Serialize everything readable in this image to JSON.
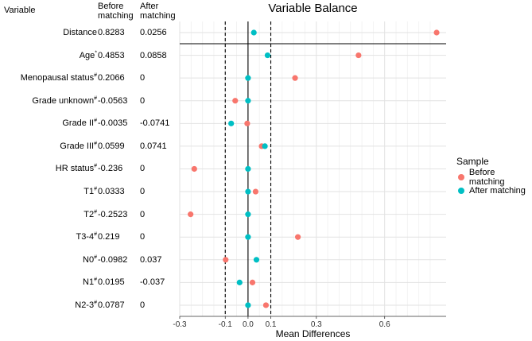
{
  "table": {
    "headers": {
      "variable": "Variable",
      "before_line1": "Before",
      "before_line2": "matching",
      "after_line1": "After",
      "after_line2": "matching"
    },
    "rows": [
      {
        "name": "Distance",
        "sup": "",
        "before": "0.8283",
        "after": "0.0256"
      },
      {
        "name": "Age",
        "sup": "*",
        "before": "0.4853",
        "after": "0.0858"
      },
      {
        "name": "Menopausal status",
        "sup": "#",
        "before": "0.2066",
        "after": "0"
      },
      {
        "name": "Grade unknown",
        "sup": "#",
        "before": "-0.0563",
        "after": "0"
      },
      {
        "name": "Grade II",
        "sup": "#",
        "before": "-0.0035",
        "after": "-0.0741"
      },
      {
        "name": "Grade III",
        "sup": "#",
        "before": "0.0599",
        "after": "0.0741"
      },
      {
        "name": "HR status",
        "sup": "#",
        "before": "-0.236",
        "after": "0"
      },
      {
        "name": "T1",
        "sup": "#",
        "before": "0.0333",
        "after": "0"
      },
      {
        "name": "T2",
        "sup": "#",
        "before": "-0.2523",
        "after": "0"
      },
      {
        "name": "T3-4",
        "sup": "#",
        "before": "0.219",
        "after": "0"
      },
      {
        "name": "N0",
        "sup": "#",
        "before": "-0.0982",
        "after": "0.037"
      },
      {
        "name": "N1",
        "sup": "#",
        "before": "0.0195",
        "after": "-0.037"
      },
      {
        "name": "N2-3",
        "sup": "#",
        "before": "0.0787",
        "after": "0"
      }
    ]
  },
  "chart_data": {
    "type": "scatter",
    "title": "Variable Balance",
    "xlabel": "Mean Differences",
    "ylabel": "",
    "xlim": [
      -0.3,
      0.87
    ],
    "xticks": [
      -0.3,
      -0.1,
      0.0,
      0.1,
      0.3,
      0.6
    ],
    "xtick_labels": [
      "-0.3",
      "-0.1",
      "0.0",
      "0.1",
      "0.3",
      "0.6"
    ],
    "vlines_dashed": [
      -0.1,
      0.1
    ],
    "vline_solid": 0,
    "categories": [
      "Distance",
      "Age",
      "Menopausal status",
      "Grade unknown",
      "Grade II",
      "Grade III",
      "HR status",
      "T1",
      "T2",
      "T3-4",
      "N0",
      "N1",
      "N2-3"
    ],
    "series": [
      {
        "name": "Before matching",
        "color": "#F8766D",
        "values": [
          0.8283,
          0.4853,
          0.2066,
          -0.0563,
          -0.0035,
          0.0599,
          -0.236,
          0.0333,
          -0.2523,
          0.219,
          -0.0982,
          0.0195,
          0.0787
        ]
      },
      {
        "name": "After matching",
        "color": "#00BFC4",
        "values": [
          0.0256,
          0.0858,
          0,
          0,
          -0.0741,
          0.0741,
          0,
          0,
          0,
          0,
          0.037,
          -0.037,
          0
        ]
      }
    ],
    "legend": {
      "title": "Sample",
      "position": "right"
    },
    "grid": true
  }
}
